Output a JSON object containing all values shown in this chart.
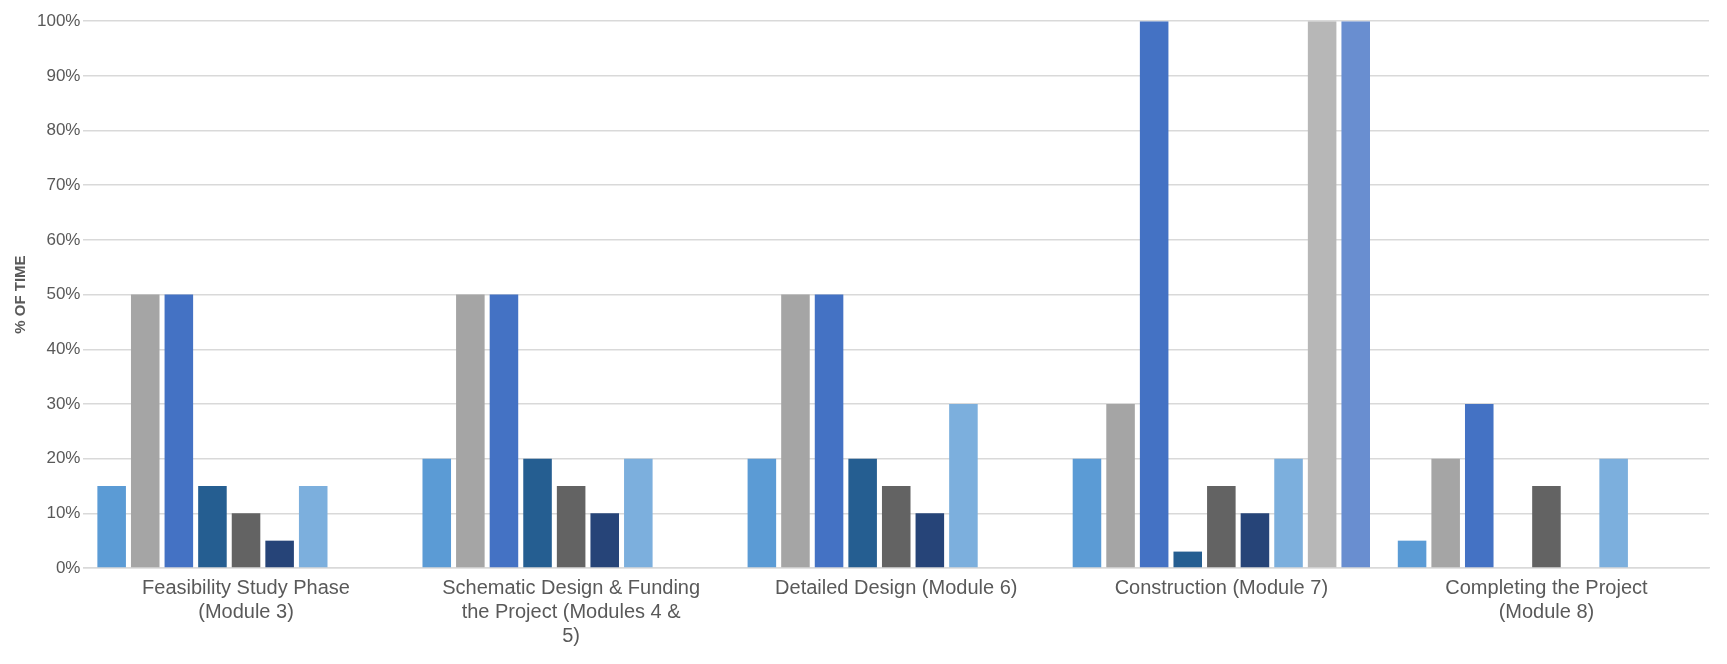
{
  "chart_data": {
    "type": "bar",
    "ylabel": "% OF TIME",
    "categories": [
      "Feasibility Study Phase (Module 3)",
      "Schematic Design & Funding the Project (Modules 4 & 5)",
      "Detailed Design (Module 6)",
      "Construction (Module 7)",
      "Completing the Project (Module 8)"
    ],
    "series": [
      {
        "color": "#5b9bd5",
        "values": [
          15,
          20,
          20,
          20,
          5
        ]
      },
      {
        "color": "#a5a5a5",
        "values": [
          50,
          50,
          50,
          30,
          20
        ]
      },
      {
        "color": "#4472c4",
        "values": [
          50,
          50,
          50,
          100,
          30
        ]
      },
      {
        "color": "#255e91",
        "values": [
          15,
          20,
          20,
          3,
          0
        ]
      },
      {
        "color": "#636363",
        "values": [
          10,
          15,
          15,
          15,
          15
        ]
      },
      {
        "color": "#264478",
        "values": [
          5,
          10,
          10,
          10,
          0
        ]
      },
      {
        "color": "#7cafdd",
        "values": [
          15,
          20,
          30,
          20,
          20
        ]
      },
      {
        "color": "#b7b7b7",
        "values": [
          0,
          0,
          0,
          100,
          0
        ]
      },
      {
        "color": "#698ed0",
        "values": [
          0,
          0,
          0,
          100,
          0
        ]
      }
    ],
    "ylim": [
      0,
      100
    ],
    "yticks": [
      {
        "value": 0,
        "label": "0%"
      },
      {
        "value": 10,
        "label": "10%"
      },
      {
        "value": 20,
        "label": "20%"
      },
      {
        "value": 30,
        "label": "30%"
      },
      {
        "value": 40,
        "label": "40%"
      },
      {
        "value": 50,
        "label": "50%"
      },
      {
        "value": 60,
        "label": "60%"
      },
      {
        "value": 70,
        "label": "70%"
      },
      {
        "value": 80,
        "label": "80%"
      },
      {
        "value": 90,
        "label": "90%"
      },
      {
        "value": 100,
        "label": "100%"
      }
    ],
    "grid": "y",
    "legend": false
  }
}
